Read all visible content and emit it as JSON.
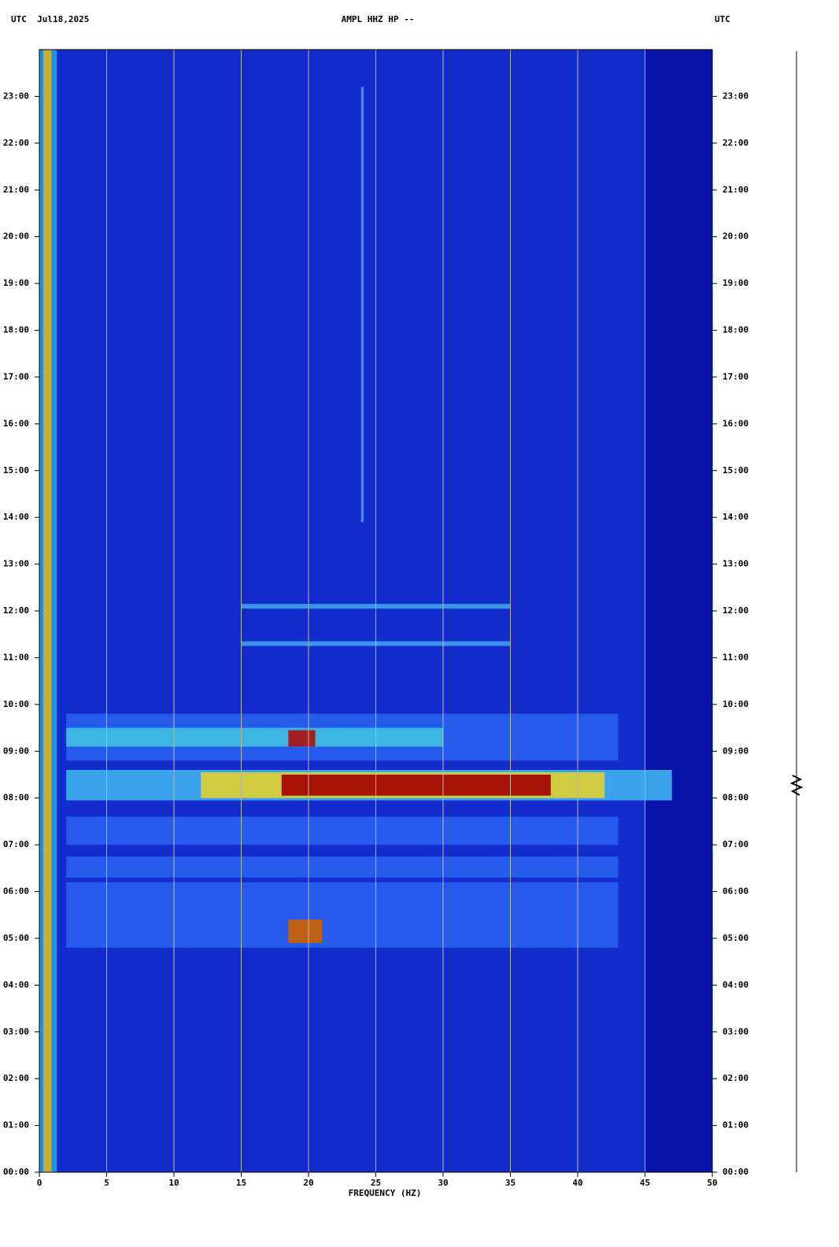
{
  "chart_data": {
    "type": "spectrogram",
    "title": "AMPL HHZ HP --",
    "header_left": "UTC  Jul18,2025",
    "header_right": "UTC",
    "x_label": "FREQUENCY (HZ)",
    "xlim": [
      0,
      50
    ],
    "xticks": [
      0,
      5,
      10,
      15,
      20,
      25,
      30,
      35,
      40,
      45,
      50
    ],
    "ylim": [
      0,
      24
    ],
    "yticks": [
      {
        "value": 0,
        "label": "00:00"
      },
      {
        "value": 1,
        "label": "01:00"
      },
      {
        "value": 2,
        "label": "02:00"
      },
      {
        "value": 3,
        "label": "03:00"
      },
      {
        "value": 4,
        "label": "04:00"
      },
      {
        "value": 5,
        "label": "05:00"
      },
      {
        "value": 6,
        "label": "06:00"
      },
      {
        "value": 7,
        "label": "07:00"
      },
      {
        "value": 8,
        "label": "08:00"
      },
      {
        "value": 9,
        "label": "09:00"
      },
      {
        "value": 10,
        "label": "10:00"
      },
      {
        "value": 11,
        "label": "11:00"
      },
      {
        "value": 12,
        "label": "12:00"
      },
      {
        "value": 13,
        "label": "13:00"
      },
      {
        "value": 14,
        "label": "14:00"
      },
      {
        "value": 15,
        "label": "15:00"
      },
      {
        "value": 16,
        "label": "16:00"
      },
      {
        "value": 17,
        "label": "17:00"
      },
      {
        "value": 18,
        "label": "18:00"
      },
      {
        "value": 19,
        "label": "19:00"
      },
      {
        "value": 20,
        "label": "20:00"
      },
      {
        "value": 21,
        "label": "21:00"
      },
      {
        "value": 22,
        "label": "22:00"
      },
      {
        "value": 23,
        "label": "23:00"
      }
    ],
    "grid": true,
    "grid_color": "#b8b8a0",
    "background": "#0a14a8",
    "regions": [
      {
        "t": [
          0,
          24
        ],
        "f": [
          1,
          45
        ],
        "color": "#1430d0"
      },
      {
        "t": [
          0,
          24
        ],
        "f": [
          0,
          1.3
        ],
        "color": "#20a0f0"
      },
      {
        "t": [
          0,
          24
        ],
        "f": [
          0.3,
          0.9
        ],
        "color": "#e0b020"
      },
      {
        "t": [
          4.8,
          6.2
        ],
        "f": [
          2,
          43
        ],
        "color": "#2a60f0"
      },
      {
        "t": [
          6.3,
          6.75
        ],
        "f": [
          2,
          43
        ],
        "color": "#2a60f0"
      },
      {
        "t": [
          7,
          7.6
        ],
        "f": [
          2,
          43
        ],
        "color": "#2a60f0"
      },
      {
        "t": [
          7.95,
          8.6
        ],
        "f": [
          2,
          47
        ],
        "color": "#40b0f0"
      },
      {
        "t": [
          8.8,
          9.8
        ],
        "f": [
          2,
          43
        ],
        "color": "#2a60f0"
      },
      {
        "t": [
          9.1,
          9.5
        ],
        "f": [
          2,
          30
        ],
        "color": "#40c0e0"
      },
      {
        "t": [
          8,
          8.55
        ],
        "f": [
          12,
          42
        ],
        "color": "#e0d030"
      },
      {
        "t": [
          8.05,
          8.5
        ],
        "f": [
          18,
          38
        ],
        "color": "#a00000"
      },
      {
        "t": [
          9.1,
          9.45
        ],
        "f": [
          18.5,
          20.5
        ],
        "color": "#b01010"
      },
      {
        "t": [
          4.9,
          5.4
        ],
        "f": [
          18.5,
          21
        ],
        "color": "#d06000"
      },
      {
        "t": [
          11.25,
          11.35
        ],
        "f": [
          15,
          35
        ],
        "color": "#40a0f0"
      },
      {
        "t": [
          12.05,
          12.15
        ],
        "f": [
          15,
          35
        ],
        "color": "#40a0f0"
      },
      {
        "t": [
          13.9,
          23.2
        ],
        "f": [
          23.9,
          24.1
        ],
        "color": "#40a0f0"
      }
    ]
  }
}
